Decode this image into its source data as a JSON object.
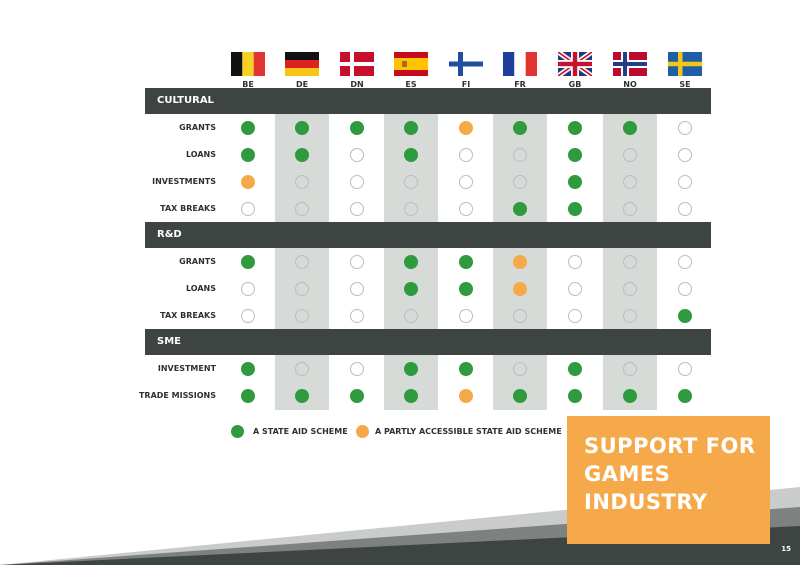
{
  "countries": [
    {
      "code": "BE",
      "flag": "belgium"
    },
    {
      "code": "DE",
      "flag": "germany"
    },
    {
      "code": "DN",
      "flag": "denmark"
    },
    {
      "code": "ES",
      "flag": "spain"
    },
    {
      "code": "FI",
      "flag": "finland"
    },
    {
      "code": "FR",
      "flag": "france"
    },
    {
      "code": "GB",
      "flag": "united-kingdom"
    },
    {
      "code": "NO",
      "flag": "norway"
    },
    {
      "code": "SE",
      "flag": "sweden"
    }
  ],
  "sections": [
    {
      "title": "CULTURAL",
      "rows": [
        {
          "label": "GRANTS",
          "values": [
            "G",
            "G",
            "G",
            "G",
            "O",
            "G",
            "G",
            "G",
            "N"
          ]
        },
        {
          "label": "LOANS",
          "values": [
            "G",
            "G",
            "N",
            "G",
            "N",
            "N",
            "G",
            "N",
            "N"
          ]
        },
        {
          "label": "INVESTMENTS",
          "values": [
            "O",
            "N",
            "N",
            "N",
            "N",
            "N",
            "G",
            "N",
            "N"
          ]
        },
        {
          "label": "TAX BREAKS",
          "values": [
            "N",
            "N",
            "N",
            "N",
            "N",
            "G",
            "G",
            "N",
            "N"
          ]
        }
      ]
    },
    {
      "title": "R&D",
      "rows": [
        {
          "label": "GRANTS",
          "values": [
            "G",
            "N",
            "N",
            "G",
            "G",
            "O",
            "N",
            "N",
            "N"
          ]
        },
        {
          "label": "LOANS",
          "values": [
            "N",
            "N",
            "N",
            "G",
            "G",
            "O",
            "N",
            "N",
            "N"
          ]
        },
        {
          "label": "TAX BREAKS",
          "values": [
            "N",
            "N",
            "N",
            "N",
            "N",
            "N",
            "N",
            "N",
            "G"
          ]
        }
      ]
    },
    {
      "title": "SME",
      "rows": [
        {
          "label": "INVESTMENT",
          "values": [
            "G",
            "N",
            "N",
            "G",
            "G",
            "N",
            "G",
            "N",
            "N"
          ]
        },
        {
          "label": "TRADE  MISSIONS",
          "values": [
            "G",
            "G",
            "G",
            "G",
            "O",
            "G",
            "G",
            "G",
            "G"
          ]
        }
      ]
    }
  ],
  "legend": {
    "green_label": "A STATE AID SCHEME",
    "orange_label": "A PARTLY ACCESSIBLE STATE AID SCHEME"
  },
  "colors": {
    "green": "#2f9a3e",
    "orange": "#f6a94a",
    "header_bar": "#3d4442",
    "column_stripe": "#d6dbd8"
  },
  "title_box": {
    "line1": "SUPPORT FOR",
    "line2": "GAMES",
    "line3": "INDUSTRY"
  },
  "page_number": "15"
}
